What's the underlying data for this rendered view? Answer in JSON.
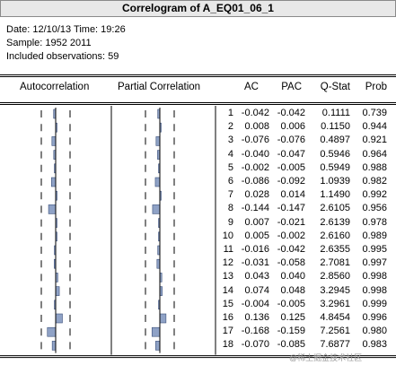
{
  "title": "Correlogram of A_EQ01_06_1",
  "info": {
    "date_line": "Date: 12/10/13   Time: 19:26",
    "sample_line": "Sample: 1952 2011",
    "obs_line": "Included observations: 59"
  },
  "headers": {
    "autocorrelation": "Autocorrelation",
    "partial_correlation": "Partial Correlation",
    "ac": "AC",
    "pac": "PAC",
    "qstat": "Q-Stat",
    "prob": "Prob"
  },
  "rows": [
    {
      "lag": "1",
      "ac": "-0.042",
      "pac": "-0.042",
      "q": "0.1111",
      "prob": "0.739"
    },
    {
      "lag": "2",
      "ac": "0.008",
      "pac": "0.006",
      "q": "0.1150",
      "prob": "0.944"
    },
    {
      "lag": "3",
      "ac": "-0.076",
      "pac": "-0.076",
      "q": "0.4897",
      "prob": "0.921"
    },
    {
      "lag": "4",
      "ac": "-0.040",
      "pac": "-0.047",
      "q": "0.5946",
      "prob": "0.964"
    },
    {
      "lag": "5",
      "ac": "-0.002",
      "pac": "-0.005",
      "q": "0.5949",
      "prob": "0.988"
    },
    {
      "lag": "6",
      "ac": "-0.086",
      "pac": "-0.092",
      "q": "1.0939",
      "prob": "0.982"
    },
    {
      "lag": "7",
      "ac": "0.028",
      "pac": "0.014",
      "q": "1.1490",
      "prob": "0.992"
    },
    {
      "lag": "8",
      "ac": "-0.144",
      "pac": "-0.147",
      "q": "2.6105",
      "prob": "0.956"
    },
    {
      "lag": "9",
      "ac": "0.007",
      "pac": "-0.021",
      "q": "2.6139",
      "prob": "0.978"
    },
    {
      "lag": "10",
      "ac": "0.005",
      "pac": "-0.002",
      "q": "2.6160",
      "prob": "0.989"
    },
    {
      "lag": "11",
      "ac": "-0.016",
      "pac": "-0.042",
      "q": "2.6355",
      "prob": "0.995"
    },
    {
      "lag": "12",
      "ac": "-0.031",
      "pac": "-0.058",
      "q": "2.7081",
      "prob": "0.997"
    },
    {
      "lag": "13",
      "ac": "0.043",
      "pac": "0.040",
      "q": "2.8560",
      "prob": "0.998"
    },
    {
      "lag": "14",
      "ac": "0.074",
      "pac": "0.048",
      "q": "3.2945",
      "prob": "0.998"
    },
    {
      "lag": "15",
      "ac": "-0.004",
      "pac": "-0.005",
      "q": "3.2961",
      "prob": "0.999"
    },
    {
      "lag": "16",
      "ac": "0.136",
      "pac": "0.125",
      "q": "4.8454",
      "prob": "0.996"
    },
    {
      "lag": "17",
      "ac": "-0.168",
      "pac": "-0.159",
      "q": "7.2561",
      "prob": "0.980"
    },
    {
      "lag": "18",
      "ac": "-0.070",
      "pac": "-0.085",
      "q": "7.6877",
      "prob": "0.983"
    }
  ],
  "watermark": "@稀土掘金技术社区",
  "colors": {
    "bar_fill": "#8fa2c6",
    "bar_stroke": "#3a4f7a",
    "title_bg": "#e8e8e8"
  }
}
